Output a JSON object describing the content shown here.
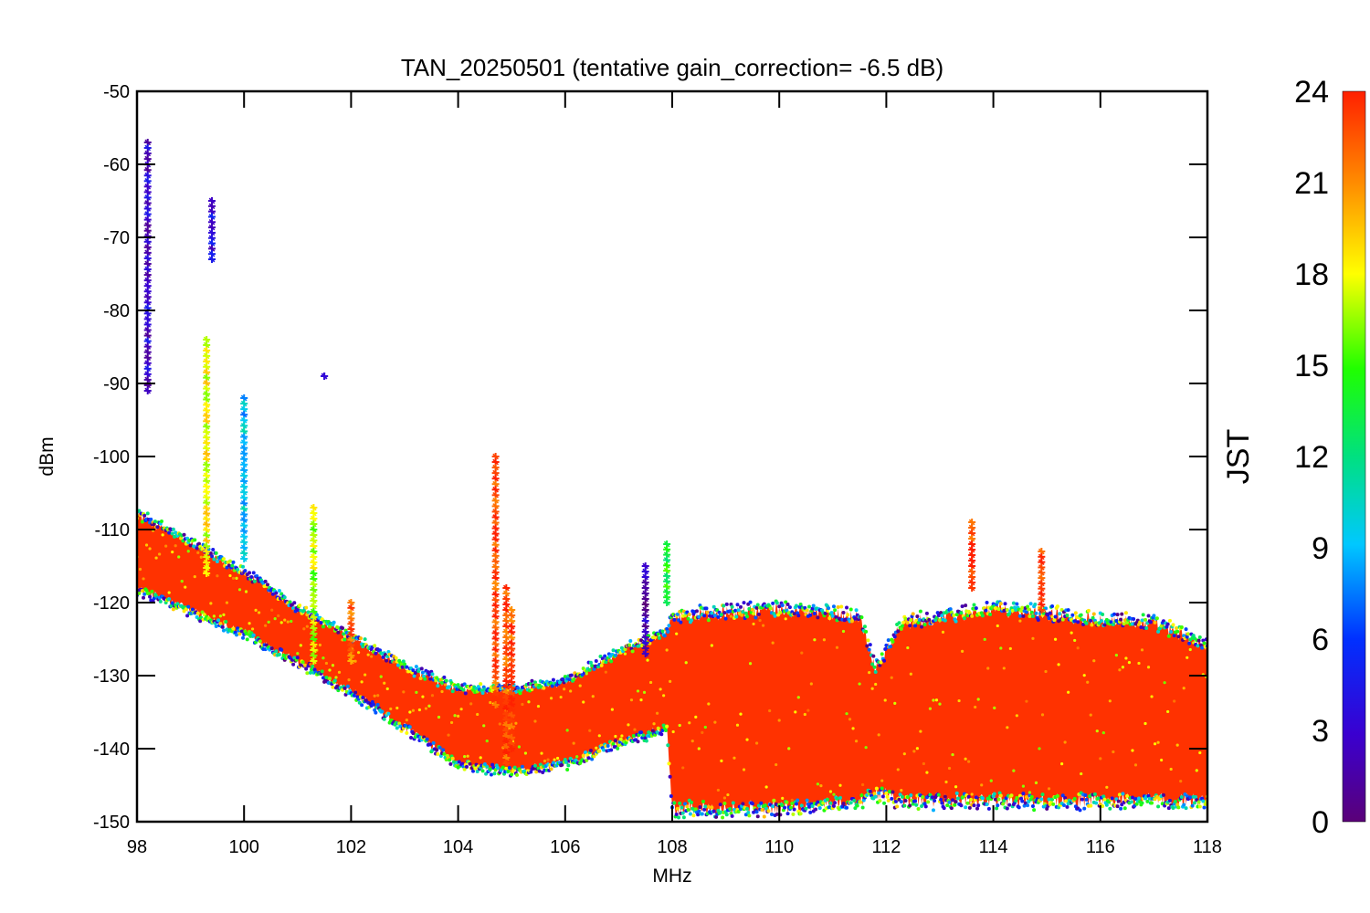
{
  "chart_data": {
    "type": "scatter",
    "title": "TAN_20250501 (tentative gain_correction= -6.5 dB)",
    "xlabel": "MHz",
    "ylabel": "dBm",
    "xlim": [
      98,
      118
    ],
    "ylim": [
      -150,
      -50
    ],
    "x_ticks": [
      "98",
      "100",
      "102",
      "104",
      "106",
      "108",
      "110",
      "112",
      "114",
      "116",
      "118"
    ],
    "y_ticks": [
      "-50",
      "-60",
      "-70",
      "-80",
      "-90",
      "-100",
      "-110",
      "-120",
      "-130",
      "-140",
      "-150"
    ],
    "colorbar": {
      "label": "JST",
      "range": [
        0,
        24
      ],
      "ticks": [
        "0",
        "3",
        "6",
        "9",
        "12",
        "15",
        "18",
        "21",
        "24"
      ],
      "colormap": "rainbow (purple-blue-cyan-green-yellow-orange-red)"
    },
    "marker": "asterisk",
    "noise_floor_profile": [
      {
        "x": 98.0,
        "y_min": -118,
        "y_max": -108
      },
      {
        "x": 99.0,
        "y_min": -121,
        "y_max": -112
      },
      {
        "x": 100.0,
        "y_min": -124,
        "y_max": -116
      },
      {
        "x": 101.0,
        "y_min": -128,
        "y_max": -121
      },
      {
        "x": 102.0,
        "y_min": -132,
        "y_max": -125
      },
      {
        "x": 103.0,
        "y_min": -137,
        "y_max": -129
      },
      {
        "x": 104.0,
        "y_min": -142,
        "y_max": -132
      },
      {
        "x": 105.0,
        "y_min": -143,
        "y_max": -132
      },
      {
        "x": 106.0,
        "y_min": -142,
        "y_max": -131
      },
      {
        "x": 107.0,
        "y_min": -139,
        "y_max": -127
      },
      {
        "x": 107.9,
        "y_min": -137,
        "y_max": -124
      },
      {
        "x": 108.0,
        "y_min": -148,
        "y_max": -122
      },
      {
        "x": 110.0,
        "y_min": -148,
        "y_max": -121
      },
      {
        "x": 111.5,
        "y_min": -147,
        "y_max": -122
      },
      {
        "x": 111.8,
        "y_min": -146,
        "y_max": -129
      },
      {
        "x": 112.3,
        "y_min": -147,
        "y_max": -123
      },
      {
        "x": 114.0,
        "y_min": -147,
        "y_max": -121
      },
      {
        "x": 117.0,
        "y_min": -147,
        "y_max": -123
      },
      {
        "x": 118.0,
        "y_min": -147,
        "y_max": -126
      }
    ],
    "signal_peaks": [
      {
        "x": 98.2,
        "y_top": -57,
        "y_bottom": -91,
        "color_hour": 3
      },
      {
        "x": 99.3,
        "y_top": -84,
        "y_bottom": -116,
        "color_hour": 18
      },
      {
        "x": 99.4,
        "y_top": -65,
        "y_bottom": -73,
        "color_hour": 4
      },
      {
        "x": 100.0,
        "y_top": -92,
        "y_bottom": -114,
        "color_hour": 9
      },
      {
        "x": 101.3,
        "y_top": -107,
        "y_bottom": -128,
        "color_hour": 17
      },
      {
        "x": 101.5,
        "y_top": -89,
        "y_bottom": -89,
        "color_hour": 4
      },
      {
        "x": 102.0,
        "y_top": -120,
        "y_bottom": -128,
        "color_hour": 22
      },
      {
        "x": 104.7,
        "y_top": -100,
        "y_bottom": -134,
        "color_hour": 23
      },
      {
        "x": 104.9,
        "y_top": -118,
        "y_bottom": -142,
        "color_hour": 23
      },
      {
        "x": 105.0,
        "y_top": -121,
        "y_bottom": -140,
        "color_hour": 23
      },
      {
        "x": 107.5,
        "y_top": -115,
        "y_bottom": -127,
        "color_hour": 2
      },
      {
        "x": 107.9,
        "y_top": -112,
        "y_bottom": -120,
        "color_hour": 14
      },
      {
        "x": 113.6,
        "y_top": -109,
        "y_bottom": -118,
        "color_hour": 23
      },
      {
        "x": 114.9,
        "y_top": -113,
        "y_bottom": -121,
        "color_hour": 23
      }
    ]
  }
}
